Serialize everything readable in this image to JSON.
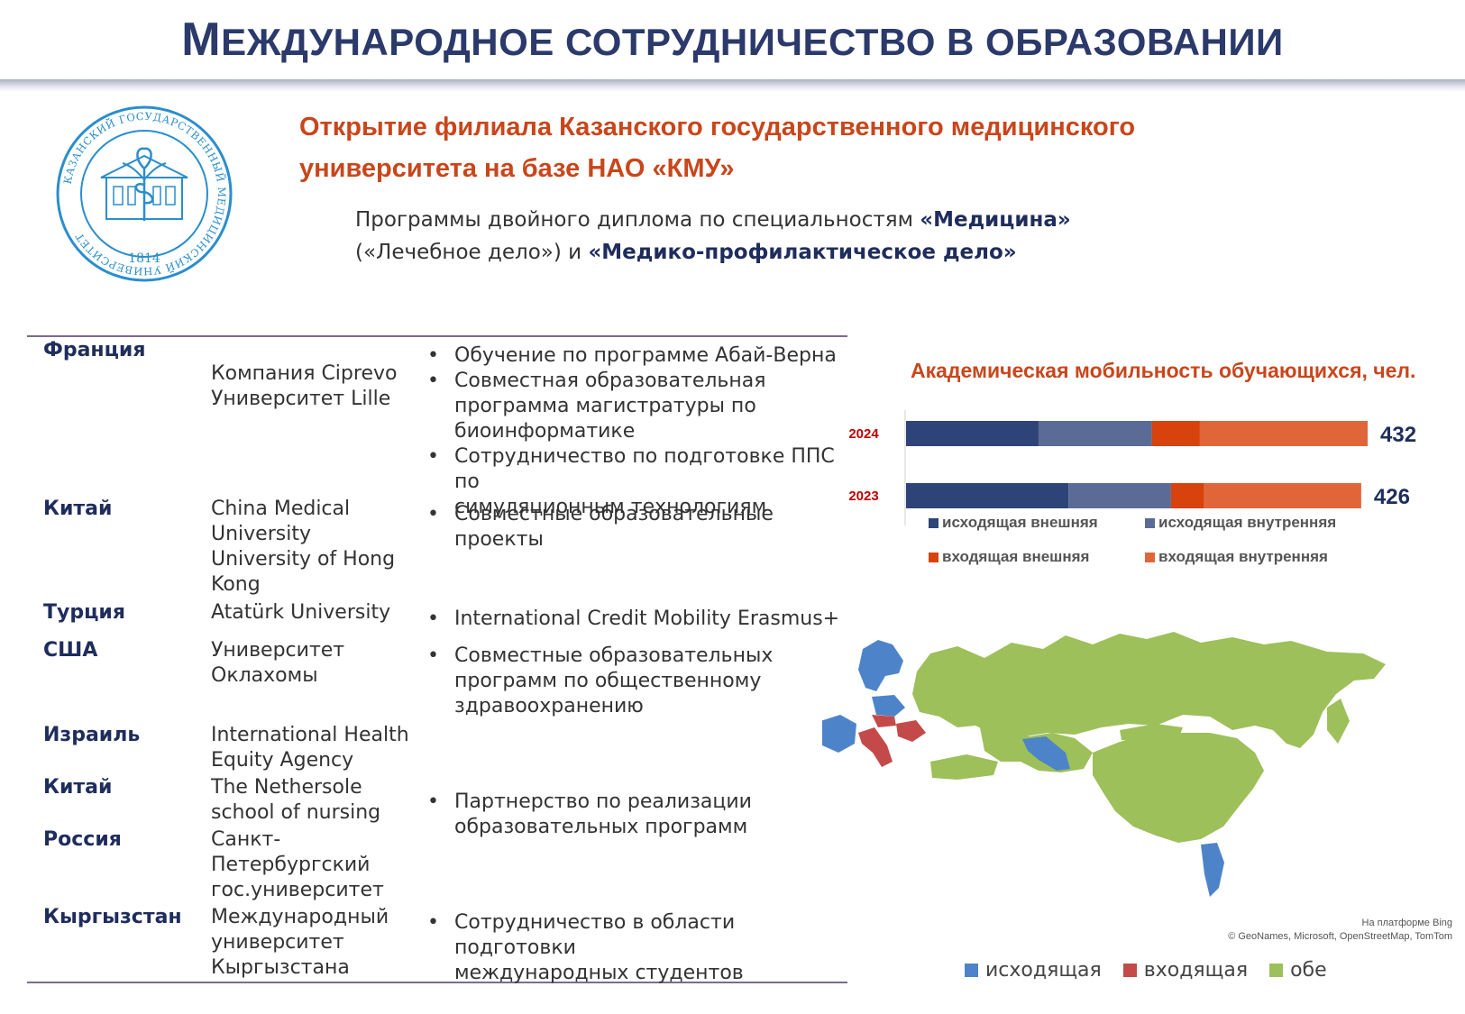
{
  "title": {
    "first_letter": "М",
    "rest": "ЕЖДУНАРОДНОЕ СОТРУДНИЧЕСТВО В ОБРАЗОВАНИИ"
  },
  "logo": {
    "year": "1814",
    "ring_text": "КАЗАНСКИЙ ГОСУДАРСТВЕННЫЙ МЕДИЦИНСКИЙ УНИВЕРСИТЕТ"
  },
  "headline": {
    "line1": "Открытие филиала Казанского государственного медицинского",
    "line2": "университета на базе НАО «КМУ»"
  },
  "subline": {
    "part1": "Программы двойного диплома по специальностям ",
    "bold1": "«Медицина»",
    "part2": "(«Лечебное дело») и ",
    "bold2": "«Медико-профилактическое дело»"
  },
  "table": {
    "countries": [
      "Франция",
      "Китай",
      "Турция",
      "США",
      "Израиль",
      "Китай",
      "Россия",
      "Кыргызстан"
    ],
    "partners": [
      [
        "Компания Ciprevo",
        "Университет Lille"
      ],
      [
        "China Medical",
        "University",
        "University of Hong",
        "Kong"
      ],
      [
        "Atatürk University"
      ],
      [
        "Университет",
        "Оклахомы"
      ],
      [
        "International Health",
        "Equity Agency"
      ],
      [
        "The Nethersole",
        "school of nursing"
      ],
      [
        "Санкт-",
        "Петербургский",
        "гос.университет"
      ],
      [
        "Международный",
        "университет",
        "Кыргызстана"
      ]
    ],
    "descriptions": [
      [
        [
          "Обучение по программе Абай-Верна"
        ],
        [
          "Совместная образовательная",
          "программа магистратуры по",
          "биоинформатике"
        ],
        [
          "Сотрудничество по подготовке ППС по",
          "симуляционным технологиям"
        ]
      ],
      [
        [
          "Совместные образовательные проекты"
        ]
      ],
      [
        [
          "International Credit Mobility Erasmus+"
        ]
      ],
      [
        [
          "Совместные образовательных",
          "программ по общественному",
          "здравоохранению"
        ]
      ],
      [
        [
          "Партнерство по реализации",
          "образовательных программ"
        ]
      ],
      [
        [
          "Сотрудничество в области подготовки",
          "международных студентов"
        ]
      ]
    ]
  },
  "chart_data": {
    "type": "bar",
    "orientation": "horizontal-stacked",
    "title": "Академическая мобильность обучающихся, чел.",
    "categories": [
      "2024",
      "2023"
    ],
    "series": [
      {
        "name": "исходящая внешняя",
        "color": "#2e4479",
        "values": [
          124,
          152
        ]
      },
      {
        "name": "исходящая внутренняя",
        "color": "#5a6b96",
        "values": [
          106,
          96
        ]
      },
      {
        "name": "входящая внешняя",
        "color": "#d8420c",
        "values": [
          45,
          31
        ]
      },
      {
        "name": "входящая внутренняя",
        "color": "#e0663a",
        "values": [
          157,
          147
        ]
      }
    ],
    "totals": [
      "432",
      "426"
    ],
    "legend_position": "bottom",
    "xlim": [
      0,
      432
    ]
  },
  "map": {
    "legend": [
      {
        "label": "исходящая",
        "color": "#4d84c9"
      },
      {
        "label": "входящая",
        "color": "#c44a4a"
      },
      {
        "label": "обе",
        "color": "#9dc05a"
      }
    ],
    "attribution_line1": "На платформе Bing",
    "attribution_line2": "© GeoNames, Microsoft, OpenStreetMap, TomTom"
  }
}
